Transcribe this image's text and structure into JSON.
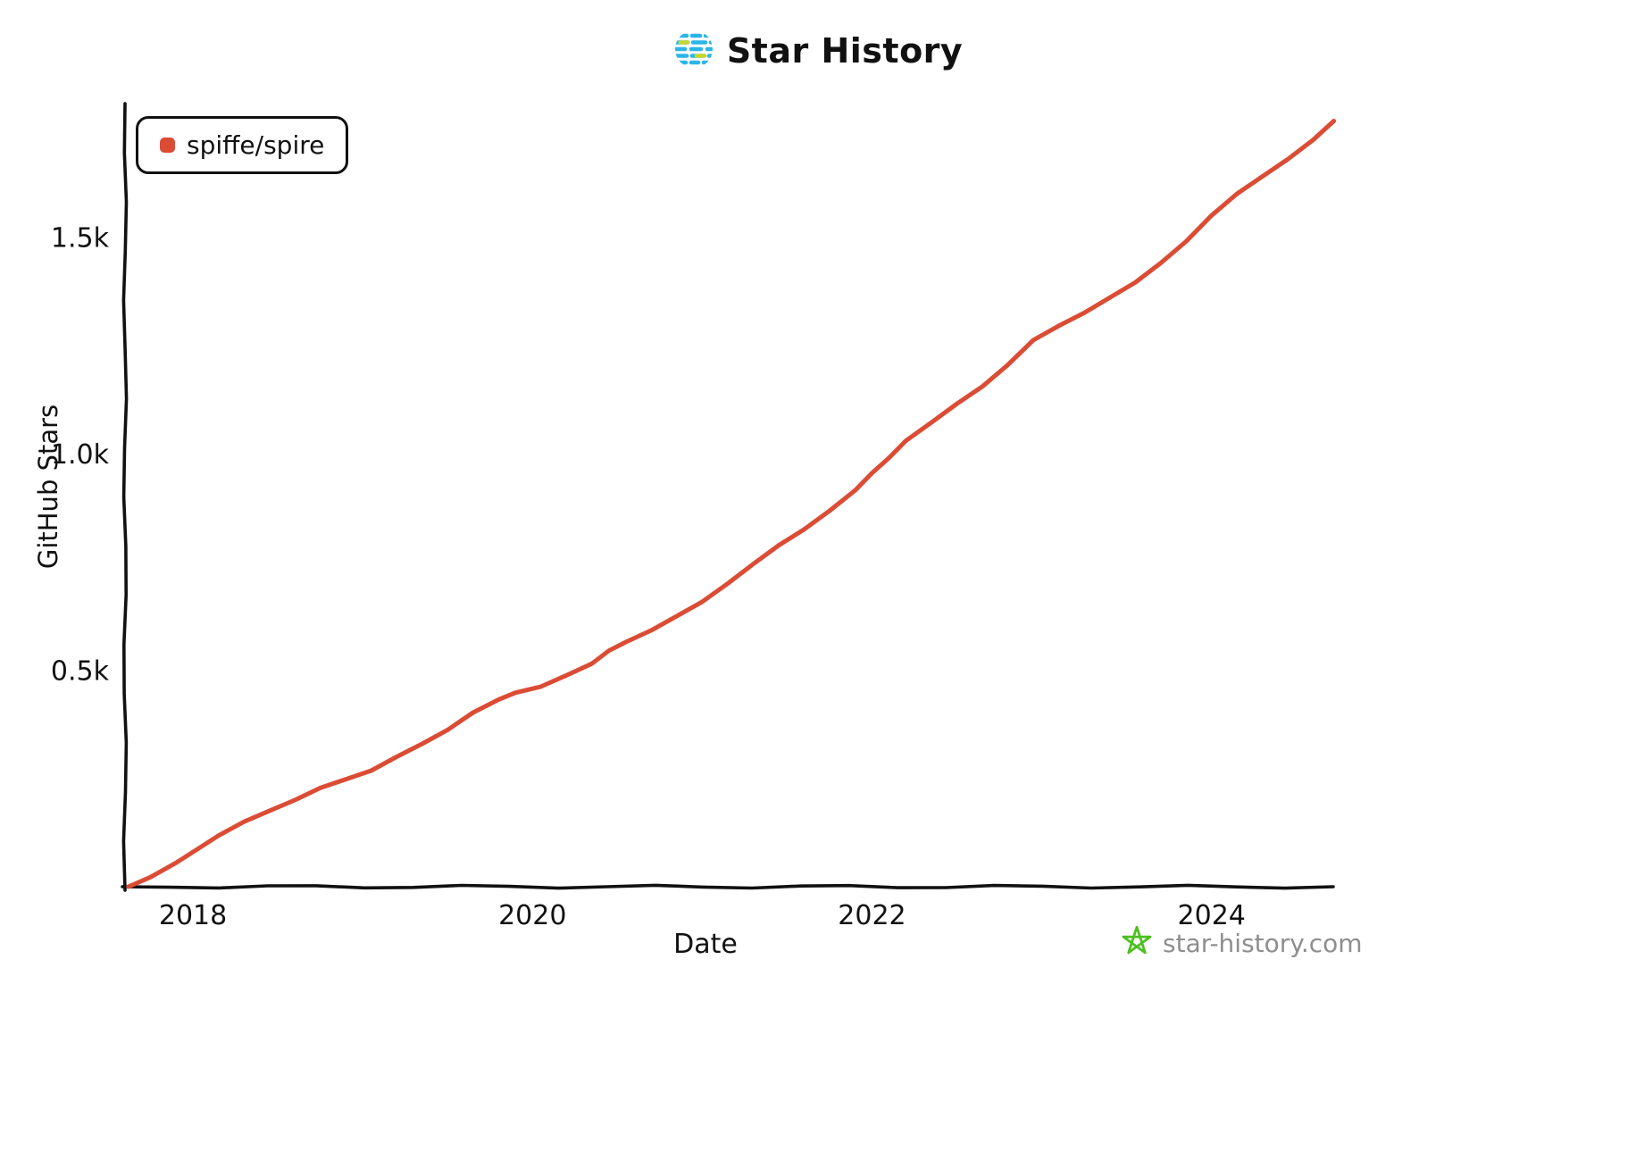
{
  "header": {
    "title": "Star History"
  },
  "legend": {
    "label": "spiffe/spire",
    "color": "#DB4C35"
  },
  "credit": {
    "site": "star-history.com",
    "star_color": "#4CBF1E"
  },
  "chart_data": {
    "type": "line",
    "title": "Star History",
    "xlabel": "Date",
    "ylabel": "GitHub Stars",
    "xlim": [
      2017.6,
      2024.78
    ],
    "ylim": [
      0,
      1800
    ],
    "grid": false,
    "legend_position": "top-left",
    "axis_color": "#111111",
    "x_ticks": [
      {
        "value": 2018,
        "label": "2018"
      },
      {
        "value": 2020,
        "label": "2020"
      },
      {
        "value": 2022,
        "label": "2022"
      },
      {
        "value": 2024,
        "label": "2024"
      }
    ],
    "y_ticks": [
      {
        "value": 500,
        "label": "0.5k"
      },
      {
        "value": 1000,
        "label": "1.0k"
      },
      {
        "value": 1500,
        "label": "1.5k"
      }
    ],
    "series": [
      {
        "name": "spiffe/spire",
        "color": "#DB4C35",
        "data": [
          [
            2017.62,
            0
          ],
          [
            2017.75,
            22
          ],
          [
            2017.9,
            55
          ],
          [
            2018.0,
            80
          ],
          [
            2018.15,
            118
          ],
          [
            2018.3,
            150
          ],
          [
            2018.45,
            175
          ],
          [
            2018.6,
            200
          ],
          [
            2018.75,
            228
          ],
          [
            2018.9,
            248
          ],
          [
            2019.05,
            268
          ],
          [
            2019.2,
            300
          ],
          [
            2019.35,
            330
          ],
          [
            2019.5,
            362
          ],
          [
            2019.65,
            402
          ],
          [
            2019.8,
            432
          ],
          [
            2019.9,
            448
          ],
          [
            2020.05,
            462
          ],
          [
            2020.2,
            488
          ],
          [
            2020.35,
            515
          ],
          [
            2020.45,
            545
          ],
          [
            2020.55,
            565
          ],
          [
            2020.7,
            592
          ],
          [
            2020.85,
            625
          ],
          [
            2021.0,
            658
          ],
          [
            2021.15,
            700
          ],
          [
            2021.3,
            745
          ],
          [
            2021.45,
            788
          ],
          [
            2021.6,
            825
          ],
          [
            2021.75,
            868
          ],
          [
            2021.9,
            915
          ],
          [
            2022.0,
            955
          ],
          [
            2022.1,
            990
          ],
          [
            2022.2,
            1030
          ],
          [
            2022.35,
            1072
          ],
          [
            2022.5,
            1115
          ],
          [
            2022.65,
            1155
          ],
          [
            2022.8,
            1205
          ],
          [
            2022.95,
            1262
          ],
          [
            2023.1,
            1295
          ],
          [
            2023.25,
            1325
          ],
          [
            2023.4,
            1360
          ],
          [
            2023.55,
            1395
          ],
          [
            2023.7,
            1440
          ],
          [
            2023.85,
            1490
          ],
          [
            2024.0,
            1550
          ],
          [
            2024.15,
            1600
          ],
          [
            2024.3,
            1640
          ],
          [
            2024.45,
            1680
          ],
          [
            2024.6,
            1725
          ],
          [
            2024.72,
            1768
          ]
        ]
      }
    ]
  }
}
